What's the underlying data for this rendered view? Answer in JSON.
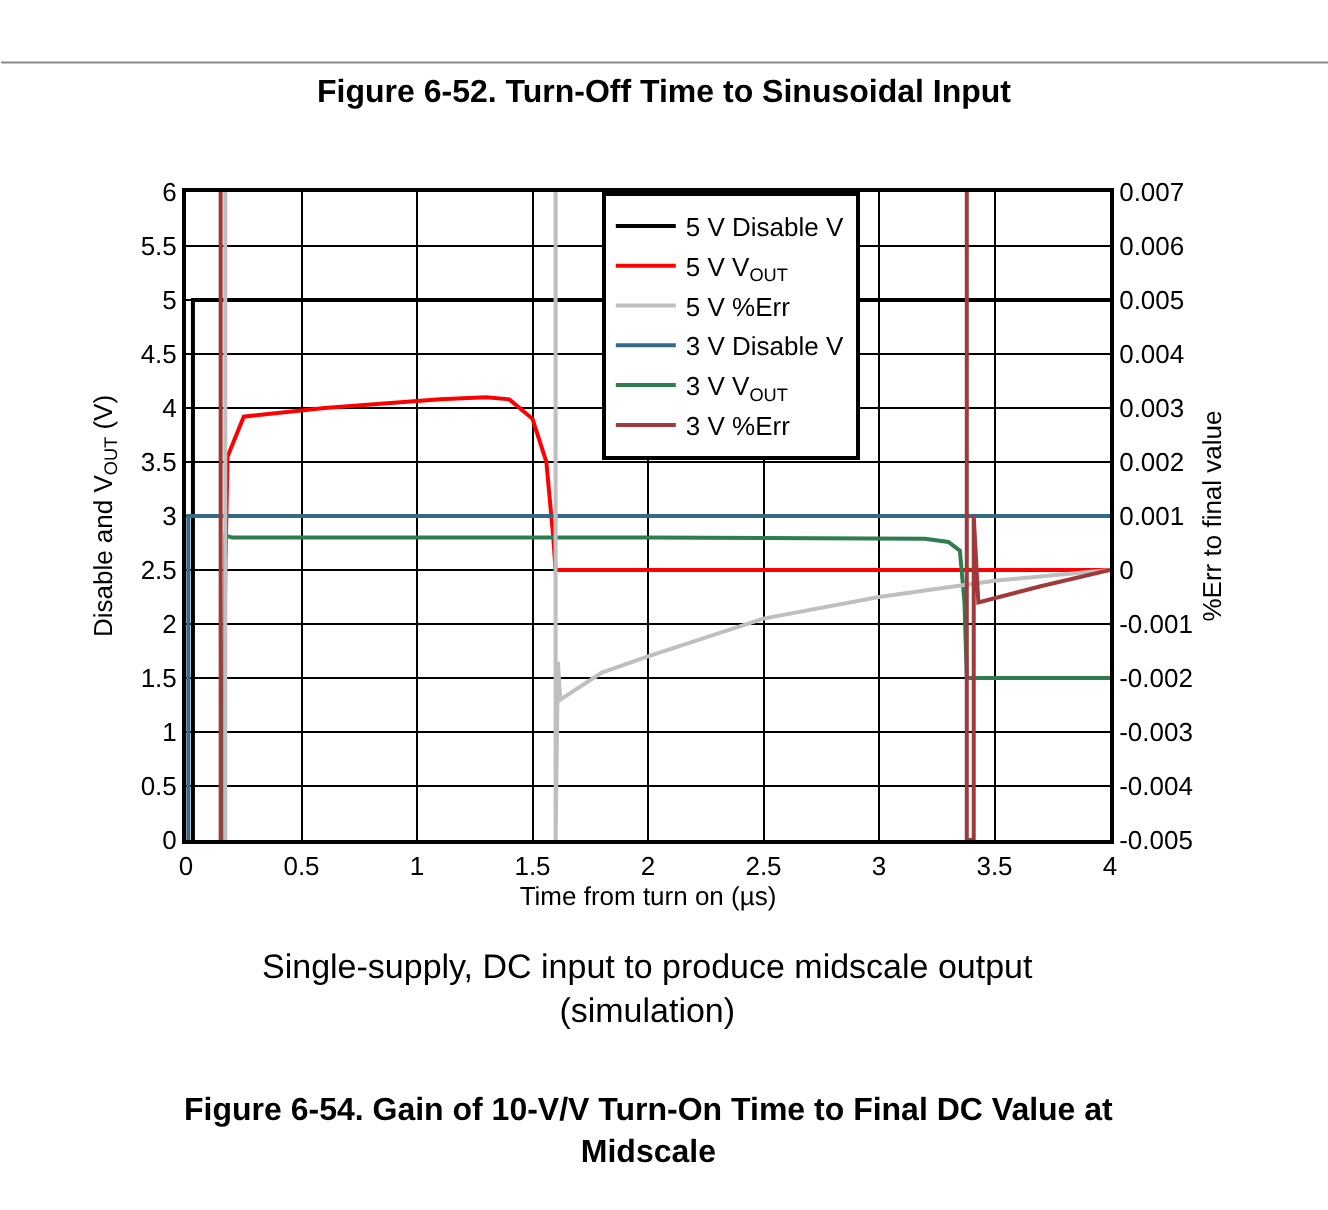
{
  "chart_data": {
    "type": "line",
    "title": "Figure 6-52. Turn-Off Time to Sinusoidal Input",
    "xlabel": "Time from turn on (µs)",
    "ylabel": "Disable and V$_{OUT}$ (V)",
    "y2label": "%Err to final value",
    "annotations": [
      "Single-supply, DC input to produce midscale output (simulation)",
      "Figure 6-54. Gain of 10-V/V Turn-On Time to Final DC Value at Midscale"
    ],
    "xlim": [
      0,
      4
    ],
    "xticks": [
      0,
      0.5,
      1,
      1.5,
      2,
      2.5,
      3,
      3.5,
      4
    ],
    "ylim": [
      0,
      6
    ],
    "yticks": [
      0,
      0.5,
      1,
      1.5,
      2,
      2.5,
      3,
      3.5,
      4,
      4.5,
      5,
      5.5,
      6
    ],
    "y2lim": [
      -0.005,
      0.007
    ],
    "y2ticks": [
      -0.005,
      -0.004,
      -0.003,
      -0.002,
      -0.001,
      0,
      0.001,
      0.002,
      0.003,
      0.004,
      0.005,
      0.006,
      0.007
    ],
    "grid": true,
    "legend": "top right",
    "marker": "none",
    "line_style": "solid",
    "series": [
      {
        "name": "5 V Disable V",
        "color": "#000000",
        "x": [
          0.03,
          0.03,
          4
        ],
        "values": [
          0,
          5,
          5
        ]
      },
      {
        "name": "5 V V$_{OUT}$",
        "color": "#ff0000",
        "x": [
          0.16,
          0.17,
          0.18,
          0.25,
          0.6,
          1.1,
          1.3,
          1.4,
          1.5,
          1.56,
          1.59,
          1.6,
          4
        ],
        "values": [
          0,
          2.5,
          3.55,
          3.92,
          4.0,
          4.08,
          4.1,
          4.08,
          3.9,
          3.5,
          2.8,
          2.5,
          2.5
        ]
      },
      {
        "name": "5 V %Err",
        "color": "#bfbfbf",
        "axis": "y2",
        "x": [
          0.17,
          0.17,
          0.171,
          1.6,
          1.6,
          1.61,
          1.62,
          1.8,
          2,
          2.5,
          3,
          3.5,
          4
        ],
        "values": [
          -0.005,
          0.007,
          null,
          0.007,
          -0.005,
          -0.0017,
          -0.0024,
          -0.0019,
          -0.0016,
          -0.0009,
          -0.0005,
          -0.0002,
          0
        ]
      },
      {
        "name": "3 V Disable V",
        "color": "#336b87",
        "x": [
          0.01,
          0.01,
          4
        ],
        "values": [
          0,
          3,
          3
        ]
      },
      {
        "name": "3 V V$_{OUT}$",
        "color": "#2e7d4f",
        "x": [
          0.16,
          0.17,
          0.2,
          1.0,
          2.0,
          3.2,
          3.3,
          3.35,
          3.37,
          3.38,
          4
        ],
        "values": [
          0,
          2.82,
          2.8,
          2.8,
          2.8,
          2.79,
          2.76,
          2.68,
          2.2,
          1.5,
          1.5
        ]
      },
      {
        "name": "3 V %Err",
        "color": "#a0393a",
        "axis": "y2",
        "x": [
          0.15,
          0.15,
          0.151,
          3.38,
          3.38,
          3.41,
          3.41,
          3.43,
          3.7,
          4
        ],
        "values": [
          -0.005,
          0.007,
          null,
          0.007,
          -0.005,
          -0.005,
          0.001,
          -0.0006,
          -0.0003,
          0
        ]
      }
    ]
  }
}
